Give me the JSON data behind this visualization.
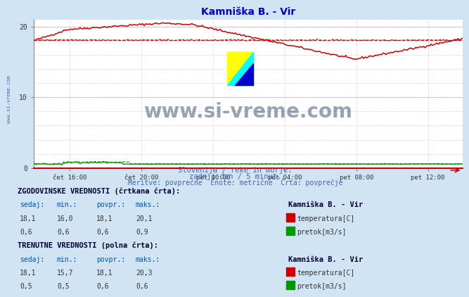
{
  "title": "Kamniška B. - Vir",
  "title_color": "#0000cc",
  "bg_color": "#d0e4f4",
  "plot_bg_color": "#ffffff",
  "xlabel_ticks": [
    "čet 16:00",
    "čet 20:00",
    "pet 00:00",
    "pet 04:00",
    "pet 08:00",
    "pet 12:00"
  ],
  "watermark_text": "www.si-vreme.com",
  "watermark_color": "#1a3560",
  "watermark_alpha": 0.45,
  "subtitle1": "Slovenija / reke in morje.",
  "subtitle2": "zadnji dan / 5 minut.",
  "subtitle3": "Meritve: povprečne  Enote: metrične  Črta: povprečje",
  "subtitle_color": "#4466aa",
  "left_label": "www.si-vreme.com",
  "left_label_color": "#4466aa",
  "temp_color": "#cc0000",
  "flow_color": "#009900",
  "table_header1": "ZGODOVINSKE VREDNOSTI (črtkana črta):",
  "table_header2": "TRENUTNE VREDNOSTI (polna črta):",
  "hist_sedaj": "18,1",
  "hist_min": "16,0",
  "hist_povpr": "18,1",
  "hist_maks": "20,1",
  "hist_flow_sedaj": "0,6",
  "hist_flow_min": "0,6",
  "hist_flow_povpr": "0,6",
  "hist_flow_maks": "0,9",
  "curr_sedaj": "18,1",
  "curr_min": "15,7",
  "curr_povpr": "18,1",
  "curr_maks": "20,3",
  "curr_flow_sedaj": "0,5",
  "curr_flow_min": "0,5",
  "curr_flow_povpr": "0,6",
  "curr_flow_maks": "0,6",
  "station": "Kamniška B. - Vir",
  "temp_label": "temperatura[C]",
  "flow_label": "pretok[m3/s]",
  "ylim_max": 21,
  "n_points": 288,
  "tick_positions": [
    24,
    72,
    120,
    168,
    216,
    264
  ]
}
